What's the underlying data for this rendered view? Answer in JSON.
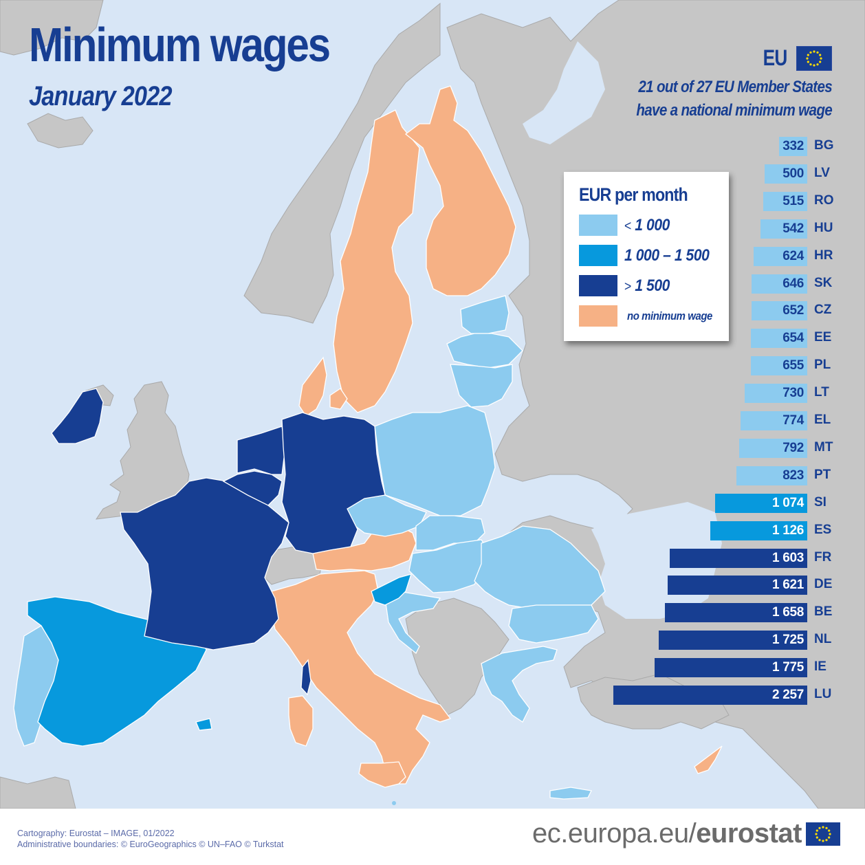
{
  "title": "Minimum wages",
  "subtitle": "January 2022",
  "eu_header": {
    "label": "EU",
    "flag_icon": "eu-flag-icon",
    "note_line1": "21 out of 27 EU Member States",
    "note_line2": "have a national minimum wage"
  },
  "legend": {
    "title": "EUR per month",
    "items": [
      {
        "op": "<",
        "label": "1 000",
        "color": "#8ccbef"
      },
      {
        "op": "",
        "label": "1 000 – 1 500",
        "color": "#0799dd"
      },
      {
        "op": ">",
        "label": "1 500",
        "color": "#173e92"
      },
      {
        "op": "",
        "label": "no minimum wage",
        "color": "#f6b185"
      }
    ]
  },
  "colors": {
    "sea": "#d8e6f6",
    "non_eu_land": "#c6c6c6",
    "low": "#8ccbef",
    "mid": "#0799dd",
    "high": "#173e92",
    "none": "#f6b185",
    "text": "#173e92"
  },
  "chart_data": {
    "type": "bar",
    "orientation": "horizontal",
    "title": "Minimum wages, January 2022",
    "unit": "EUR per month",
    "categories": [
      "BG",
      "LV",
      "RO",
      "HU",
      "HR",
      "SK",
      "CZ",
      "EE",
      "PL",
      "LT",
      "EL",
      "MT",
      "PT",
      "SI",
      "ES",
      "FR",
      "DE",
      "BE",
      "NL",
      "IE",
      "LU"
    ],
    "values": [
      332,
      500,
      515,
      542,
      624,
      646,
      652,
      654,
      655,
      730,
      774,
      792,
      823,
      1074,
      1126,
      1603,
      1621,
      1658,
      1725,
      1775,
      2257
    ],
    "labels": [
      "332",
      "500",
      "515",
      "542",
      "624",
      "646",
      "652",
      "654",
      "655",
      "730",
      "774",
      "792",
      "823",
      "1 074",
      "1 126",
      "1 603",
      "1 621",
      "1 658",
      "1 725",
      "1 775",
      "2 257"
    ],
    "bins": [
      "low",
      "low",
      "low",
      "low",
      "low",
      "low",
      "low",
      "low",
      "low",
      "low",
      "low",
      "low",
      "low",
      "mid",
      "mid",
      "high",
      "high",
      "high",
      "high",
      "high",
      "high"
    ],
    "legend": [
      "< 1 000",
      "1 000 – 1 500",
      "> 1 500",
      "no minimum wage"
    ],
    "no_minimum_wage": [
      "DK",
      "FI",
      "SE",
      "AT",
      "IT",
      "CY"
    ],
    "grid": false
  },
  "footer": {
    "credit_line1": "Cartography: Eurostat – IMAGE, 01/2022",
    "credit_line2": "Administrative boundaries: © EuroGeographics © UN–FAO © Turkstat",
    "url_prefix": "ec.europa.eu/",
    "url_bold": "eurostat"
  }
}
